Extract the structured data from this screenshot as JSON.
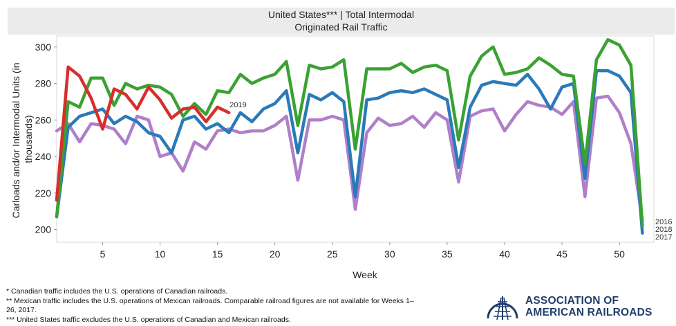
{
  "title": {
    "line1": "United States*** | Total Intermodal",
    "line2": "Originated Rail Traffic"
  },
  "chart_data": {
    "type": "line",
    "title": "United States*** | Total Intermodal Originated Rail Traffic",
    "xlabel": "Week",
    "ylabel": "Carloads and/or Intermodal Units (in thousands)",
    "xlim": [
      1,
      53
    ],
    "ylim": [
      193,
      306
    ],
    "xticks": [
      5,
      10,
      15,
      20,
      25,
      30,
      35,
      40,
      45,
      50
    ],
    "yticks": [
      200,
      220,
      240,
      260,
      280,
      300
    ],
    "series": [
      {
        "name": "2016",
        "color": "#b07fc9",
        "x": [
          1,
          2,
          3,
          4,
          5,
          6,
          7,
          8,
          9,
          10,
          11,
          12,
          13,
          14,
          15,
          16,
          17,
          18,
          19,
          20,
          21,
          22,
          23,
          24,
          25,
          26,
          27,
          28,
          29,
          30,
          31,
          32,
          33,
          34,
          35,
          36,
          37,
          38,
          39,
          40,
          41,
          42,
          43,
          44,
          45,
          46,
          47,
          48,
          49,
          50,
          51,
          52
        ],
        "values": [
          254,
          258,
          248,
          258,
          257,
          255,
          247,
          262,
          260,
          240,
          242,
          232,
          248,
          244,
          254,
          255,
          253,
          254,
          254,
          257,
          262,
          227,
          260,
          260,
          262,
          260,
          211,
          253,
          261,
          257,
          258,
          262,
          256,
          264,
          260,
          226,
          262,
          265,
          266,
          254,
          263,
          270,
          268,
          267,
          263,
          270,
          218,
          272,
          273,
          264,
          247,
          205
        ]
      },
      {
        "name": "2017",
        "color": "#2a7ab9",
        "x": [
          1,
          2,
          3,
          4,
          5,
          6,
          7,
          8,
          9,
          10,
          11,
          12,
          13,
          14,
          15,
          16,
          17,
          18,
          19,
          20,
          21,
          22,
          23,
          24,
          25,
          26,
          27,
          28,
          29,
          30,
          31,
          32,
          33,
          34,
          35,
          36,
          37,
          38,
          39,
          40,
          41,
          42,
          43,
          44,
          45,
          46,
          47,
          48,
          49,
          50,
          51,
          52
        ],
        "values": [
          207,
          256,
          262,
          264,
          266,
          258,
          262,
          259,
          253,
          251,
          242,
          260,
          262,
          255,
          258,
          253,
          264,
          259,
          266,
          269,
          276,
          242,
          274,
          271,
          275,
          270,
          218,
          271,
          272,
          275,
          276,
          275,
          277,
          274,
          271,
          234,
          267,
          279,
          281,
          280,
          279,
          285,
          277,
          266,
          278,
          280,
          228,
          287,
          287,
          284,
          275,
          198
        ]
      },
      {
        "name": "2018",
        "color": "#3aa132",
        "x": [
          1,
          2,
          3,
          4,
          5,
          6,
          7,
          8,
          9,
          10,
          11,
          12,
          13,
          14,
          15,
          16,
          17,
          18,
          19,
          20,
          21,
          22,
          23,
          24,
          25,
          26,
          27,
          28,
          29,
          30,
          31,
          32,
          33,
          34,
          35,
          36,
          37,
          38,
          39,
          40,
          41,
          42,
          43,
          44,
          45,
          46,
          47,
          48,
          49,
          50,
          51,
          52
        ],
        "values": [
          207,
          270,
          267,
          283,
          283,
          268,
          280,
          277,
          279,
          278,
          274,
          262,
          269,
          263,
          276,
          275,
          285,
          280,
          283,
          285,
          292,
          257,
          290,
          288,
          289,
          293,
          244,
          288,
          288,
          288,
          291,
          286,
          289,
          290,
          287,
          249,
          284,
          295,
          300,
          285,
          286,
          288,
          294,
          290,
          285,
          284,
          236,
          293,
          304,
          301,
          290,
          202
        ]
      },
      {
        "name": "2019",
        "color": "#d72f2c",
        "x": [
          1,
          2,
          3,
          4,
          5,
          6,
          7,
          8,
          9,
          10,
          11,
          12,
          13,
          14,
          15,
          16
        ],
        "values": [
          216,
          289,
          284,
          272,
          255,
          277,
          274,
          266,
          278,
          271,
          261,
          266,
          267,
          259,
          267,
          264
        ]
      }
    ],
    "end_labels": [
      "2016",
      "2018",
      "2017"
    ],
    "series_label_2019": "2019"
  },
  "footnotes": [
    "* Canadian traffic includes the U.S. operations of Canadian railroads.",
    "** Mexican traffic includes the U.S. operations of Mexican railroads. Comparable railroad figures are not available for Weeks 1–",
    "26, 2017.",
    "*** United States traffic excludes the U.S. operations of Canadian and Mexican railroads."
  ],
  "logo": {
    "line1": "ASSOCIATION OF",
    "line2": "AMERICAN RAILROADS"
  }
}
